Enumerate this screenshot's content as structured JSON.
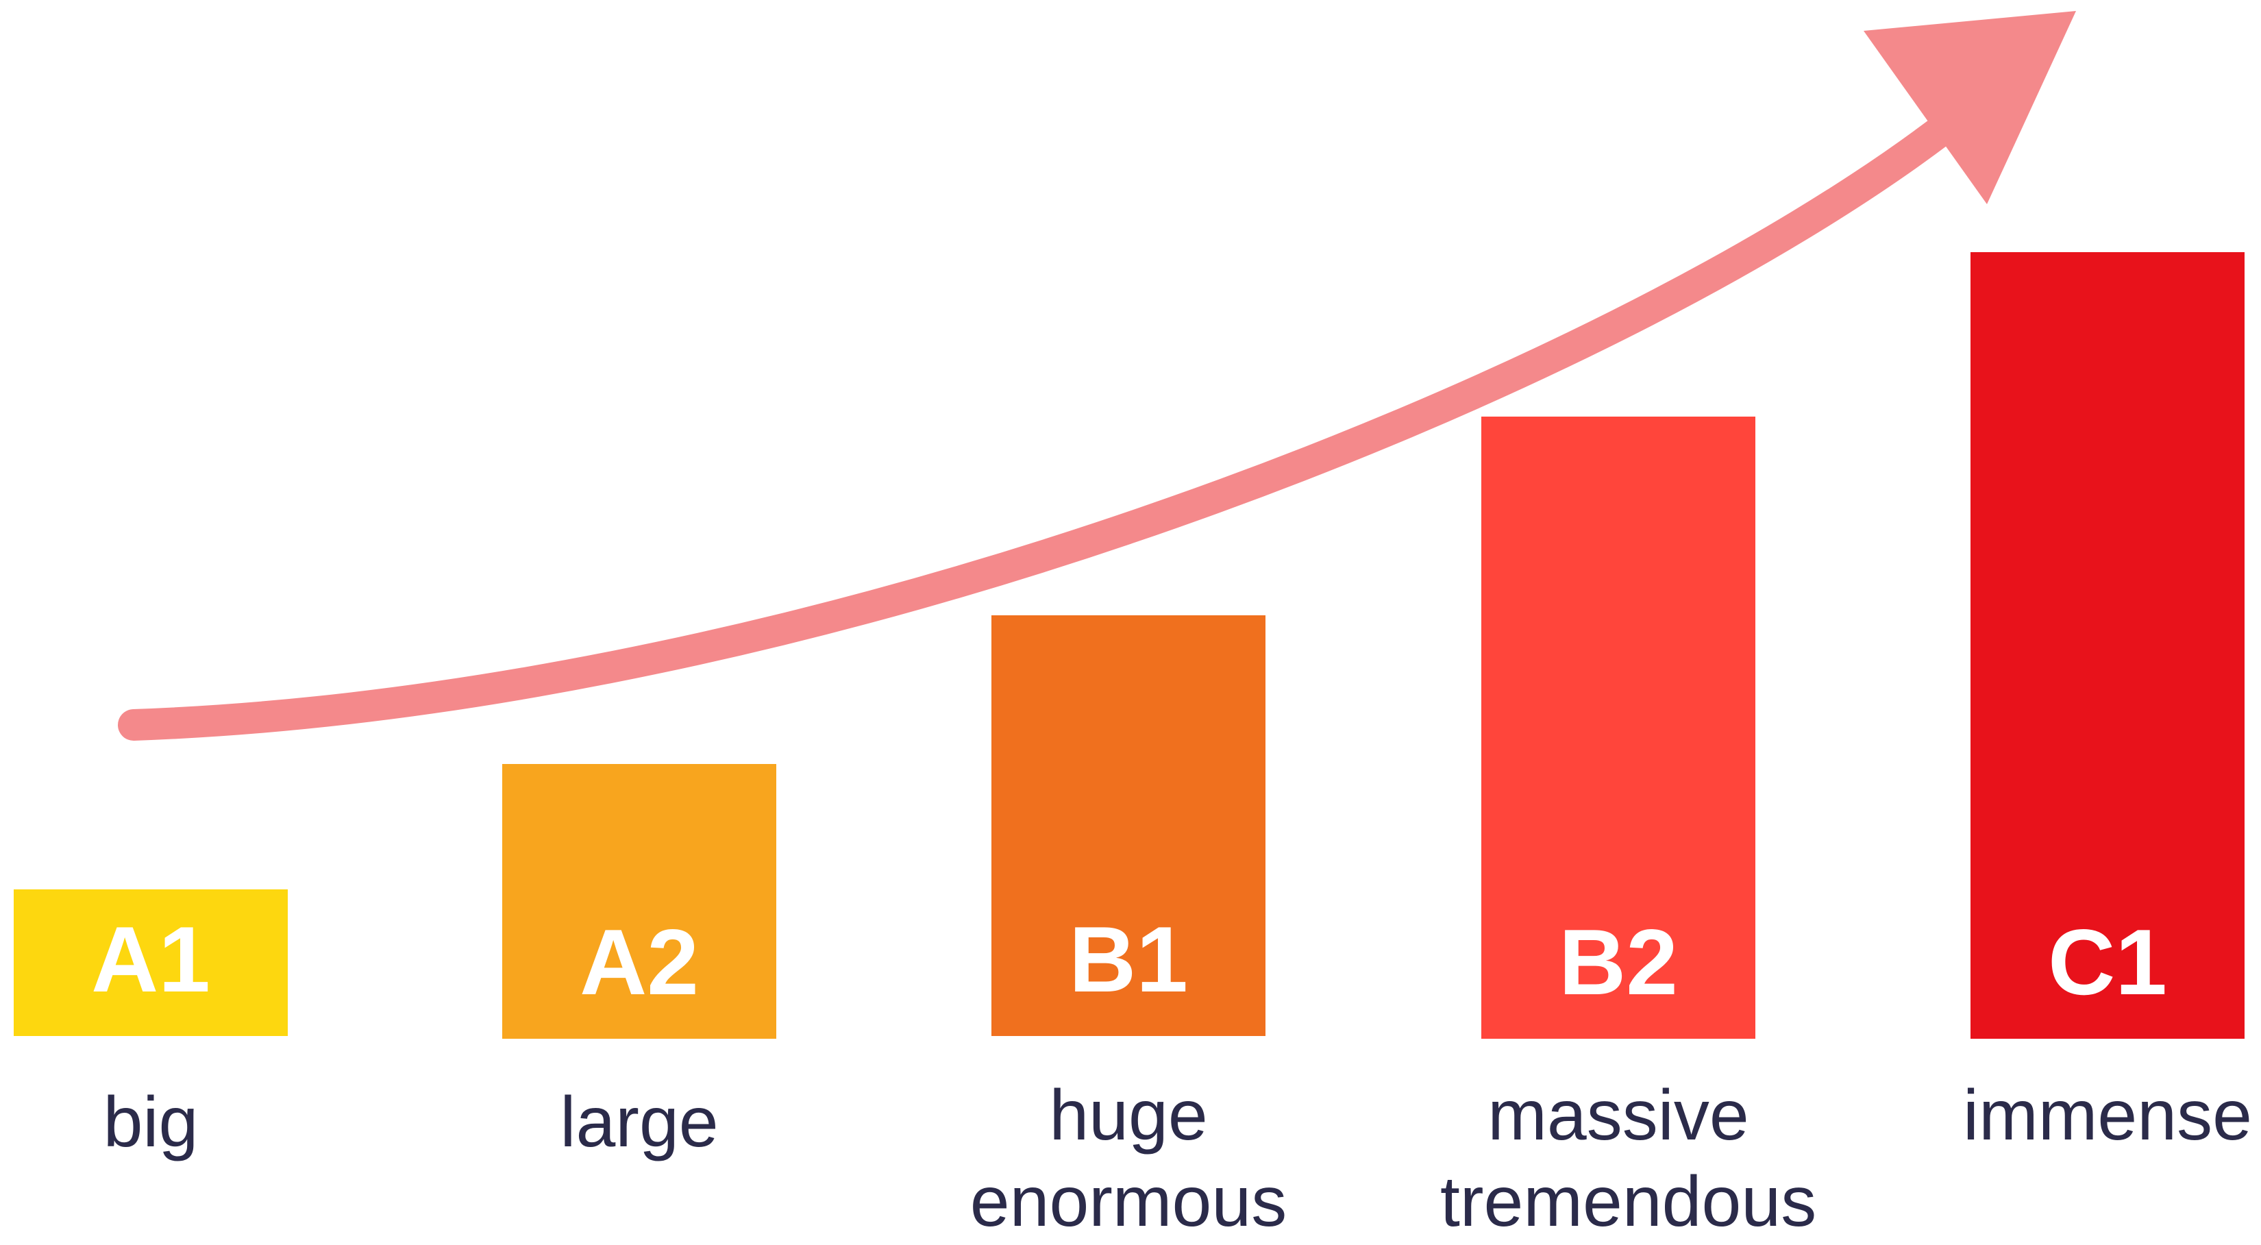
{
  "levels": [
    {
      "code": "A1",
      "color": "#fdd70f",
      "intensity": 1,
      "words": [
        "big"
      ]
    },
    {
      "code": "A2",
      "color": "#f8a51e",
      "intensity": 2,
      "words": [
        "large"
      ]
    },
    {
      "code": "B1",
      "color": "#f0701e",
      "intensity": 3,
      "words": [
        "huge",
        "enormous"
      ]
    },
    {
      "code": "B2",
      "color": "#ff453b",
      "intensity": 4,
      "words": [
        "massive",
        "tremendous"
      ]
    },
    {
      "code": "C1",
      "color": "#e8121b",
      "intensity": 5,
      "words": [
        "immense"
      ]
    }
  ],
  "arrow": {
    "color": "#f4898b"
  }
}
